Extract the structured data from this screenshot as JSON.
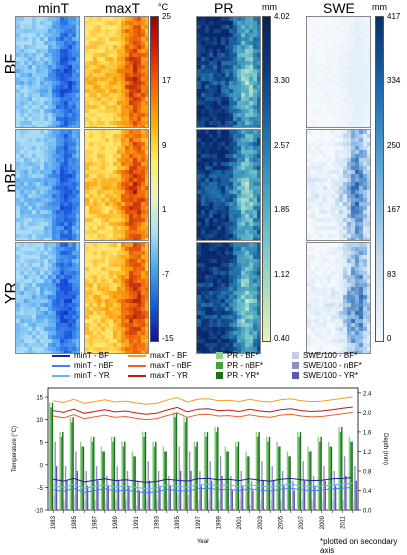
{
  "headers": {
    "minT": "minT",
    "maxT": "maxT",
    "PR": "PR",
    "SWE": "SWE"
  },
  "units": {
    "temp": "°C",
    "pr": "mm",
    "swe": "mm"
  },
  "row_labels": [
    "BF",
    "nBF",
    "YR"
  ],
  "colorbars": {
    "temp_ticks": [
      "25",
      "17",
      "9",
      "1",
      "-7",
      "-15"
    ],
    "pr_ticks": [
      "4.02",
      "3.30",
      "2.57",
      "1.85",
      "1.12",
      "0.40"
    ],
    "swe_ticks": [
      "417",
      "334",
      "250",
      "167",
      "83",
      "0"
    ]
  },
  "colors": {
    "minT_BF": "#1f1fa0",
    "minT_nBF": "#4d79ff",
    "minT_YR": "#62b8f0",
    "maxT_BF": "#f0a020",
    "maxT_nBF": "#e8602a",
    "maxT_YR": "#c01818",
    "PR_BF": "#8fd18b",
    "PR_nBF": "#40a040",
    "PR_YR": "#1e6e1e",
    "SWE_BF": "#c8c8e8",
    "SWE_nBF": "#8f8fc8",
    "SWE_YR": "#5a5aa8"
  },
  "legend": {
    "minT_BF": "minT - BF",
    "minT_nBF": "minT - nBF",
    "minT_YR": "minT - YR",
    "maxT_BF": "maxT - BF",
    "maxT_nBF": "maxT - nBF",
    "maxT_YR": "maxT - YR",
    "PR_BF": "PR - BF*",
    "PR_nBF": "PR - nBF*",
    "PR_YR": "PR - YR*",
    "SWE_BF": "SWE/100 - BF*",
    "SWE_nBF": "SWE/100 - nBF*",
    "SWE_YR": "SWE/100 - YR*"
  },
  "footnote": "*plotted on secondary axis",
  "chart_data": {
    "type": "bar",
    "xlabel": "Year",
    "ylabel": "Temperature (°C)",
    "y2label": "Depth (mm)",
    "ylim": [
      -10,
      17
    ],
    "y2lim": [
      0,
      2.5
    ],
    "yticks": [
      -10,
      -5,
      0,
      5,
      10,
      15
    ],
    "y2ticks": [
      0,
      0.4,
      0.8,
      1.2,
      1.6,
      2.0,
      2.4
    ],
    "x": [
      1983,
      1984,
      1985,
      1986,
      1987,
      1988,
      1989,
      1990,
      1991,
      1992,
      1993,
      1994,
      1995,
      1996,
      1997,
      1998,
      1999,
      2000,
      2001,
      2002,
      2003,
      2004,
      2005,
      2006,
      2007,
      2008,
      2009,
      2010,
      2011,
      2012
    ],
    "x_tick_labels": [
      "1983",
      "1985",
      "1987",
      "1989",
      "1991",
      "1993",
      "1995",
      "1997",
      "1999",
      "2001",
      "2003",
      "2005",
      "2007",
      "2009",
      "2011"
    ],
    "line_series": [
      {
        "name": "minT - BF",
        "values": [
          -3.2,
          -3.6,
          -3.0,
          -3.8,
          -3.4,
          -3.1,
          -3.5,
          -3.3,
          -3.6,
          -3.9,
          -3.7,
          -3.2,
          -3.4,
          -3.6,
          -3.1,
          -3.0,
          -3.3,
          -3.2,
          -3.5,
          -3.1,
          -3.4,
          -3.6,
          -3.2,
          -3.0,
          -3.3,
          -3.5,
          -3.4,
          -3.1,
          -3.0,
          -2.8
        ]
      },
      {
        "name": "minT - nBF",
        "values": [
          -5.5,
          -5.9,
          -5.2,
          -6.1,
          -5.7,
          -5.3,
          -5.8,
          -5.6,
          -5.9,
          -6.2,
          -6.0,
          -5.4,
          -5.7,
          -5.8,
          -5.3,
          -5.2,
          -5.5,
          -5.4,
          -5.7,
          -5.3,
          -5.6,
          -5.8,
          -5.4,
          -5.2,
          -5.5,
          -5.7,
          -5.6,
          -5.3,
          -5.2,
          -5.0
        ]
      },
      {
        "name": "minT - YR",
        "values": [
          -4.6,
          -5.0,
          -4.3,
          -5.2,
          -4.8,
          -4.4,
          -4.9,
          -4.7,
          -5.0,
          -5.3,
          -5.1,
          -4.5,
          -4.8,
          -4.9,
          -4.4,
          -4.3,
          -4.6,
          -4.5,
          -4.8,
          -4.4,
          -4.7,
          -4.9,
          -4.5,
          -4.3,
          -4.6,
          -4.8,
          -4.7,
          -4.4,
          -4.3,
          -4.1
        ]
      },
      {
        "name": "maxT - BF",
        "values": [
          14.2,
          13.8,
          14.5,
          13.6,
          14.0,
          14.4,
          13.9,
          14.1,
          13.7,
          13.4,
          13.6,
          14.3,
          14.9,
          13.9,
          14.5,
          14.6,
          14.2,
          14.3,
          14.0,
          14.5,
          14.1,
          13.9,
          14.4,
          14.6,
          14.2,
          14.0,
          14.1,
          14.4,
          14.7,
          15.0
        ]
      },
      {
        "name": "maxT - nBF",
        "values": [
          10.8,
          10.4,
          11.1,
          10.2,
          10.6,
          11.0,
          10.5,
          10.7,
          10.3,
          10.0,
          10.2,
          10.9,
          11.5,
          10.5,
          11.1,
          11.2,
          10.8,
          10.9,
          10.6,
          11.1,
          10.7,
          10.5,
          11.0,
          11.2,
          10.8,
          10.6,
          10.7,
          11.0,
          11.3,
          11.6
        ]
      },
      {
        "name": "maxT - YR",
        "values": [
          12.0,
          11.6,
          12.3,
          11.4,
          11.8,
          12.2,
          11.7,
          11.9,
          11.5,
          11.2,
          11.4,
          12.1,
          12.7,
          11.7,
          12.3,
          12.4,
          12.0,
          12.1,
          11.8,
          12.3,
          11.9,
          11.7,
          12.2,
          12.4,
          12.0,
          11.8,
          11.9,
          12.2,
          12.5,
          12.8
        ]
      }
    ],
    "bar_series": [
      {
        "name": "PR - BF*",
        "values": [
          2.2,
          1.6,
          1.9,
          1.4,
          1.5,
          1.3,
          1.5,
          1.4,
          1.2,
          1.6,
          1.4,
          1.3,
          2.0,
          1.9,
          1.4,
          1.6,
          1.7,
          1.3,
          1.4,
          1.2,
          1.6,
          1.5,
          1.4,
          1.2,
          1.6,
          1.3,
          1.5,
          1.4,
          1.7,
          1.5
        ]
      },
      {
        "name": "PR - nBF*",
        "values": [
          2.1,
          1.5,
          1.8,
          1.3,
          1.4,
          1.2,
          1.4,
          1.3,
          1.1,
          1.5,
          1.3,
          1.2,
          1.9,
          1.8,
          1.3,
          1.5,
          1.6,
          1.2,
          1.3,
          1.1,
          1.5,
          1.4,
          1.3,
          1.1,
          1.5,
          1.2,
          1.4,
          1.3,
          1.6,
          1.4
        ]
      },
      {
        "name": "PR - YR*",
        "values": [
          2.2,
          1.6,
          1.9,
          1.3,
          1.5,
          1.2,
          1.5,
          1.4,
          1.1,
          1.6,
          1.4,
          1.2,
          2.0,
          1.9,
          1.4,
          1.6,
          1.7,
          1.2,
          1.4,
          1.1,
          1.6,
          1.5,
          1.3,
          1.1,
          1.6,
          1.2,
          1.5,
          1.3,
          1.7,
          1.4
        ]
      },
      {
        "name": "SWE/100 - BF*",
        "values": [
          0.3,
          0.2,
          0.3,
          0.2,
          0.2,
          0.2,
          0.2,
          0.2,
          0.1,
          0.2,
          0.2,
          0.2,
          0.3,
          0.3,
          0.2,
          0.2,
          0.2,
          0.1,
          0.2,
          0.1,
          0.2,
          0.2,
          0.2,
          0.1,
          0.2,
          0.2,
          0.2,
          0.2,
          0.2,
          0.2
        ]
      },
      {
        "name": "SWE/100 - nBF*",
        "values": [
          1.4,
          0.9,
          1.2,
          0.8,
          0.9,
          0.7,
          0.9,
          0.8,
          0.6,
          1.0,
          0.8,
          0.7,
          1.3,
          1.2,
          0.8,
          1.0,
          1.1,
          0.7,
          0.8,
          0.6,
          1.0,
          0.9,
          0.8,
          0.6,
          1.0,
          0.7,
          0.9,
          0.8,
          1.1,
          0.9
        ]
      },
      {
        "name": "SWE/100 - YR*",
        "values": [
          0.9,
          0.6,
          0.8,
          0.5,
          0.6,
          0.5,
          0.6,
          0.5,
          0.4,
          0.6,
          0.5,
          0.5,
          0.8,
          0.8,
          0.5,
          0.6,
          0.7,
          0.4,
          0.5,
          0.4,
          0.6,
          0.6,
          0.5,
          0.4,
          0.6,
          0.5,
          0.6,
          0.5,
          0.7,
          0.6
        ]
      }
    ]
  }
}
